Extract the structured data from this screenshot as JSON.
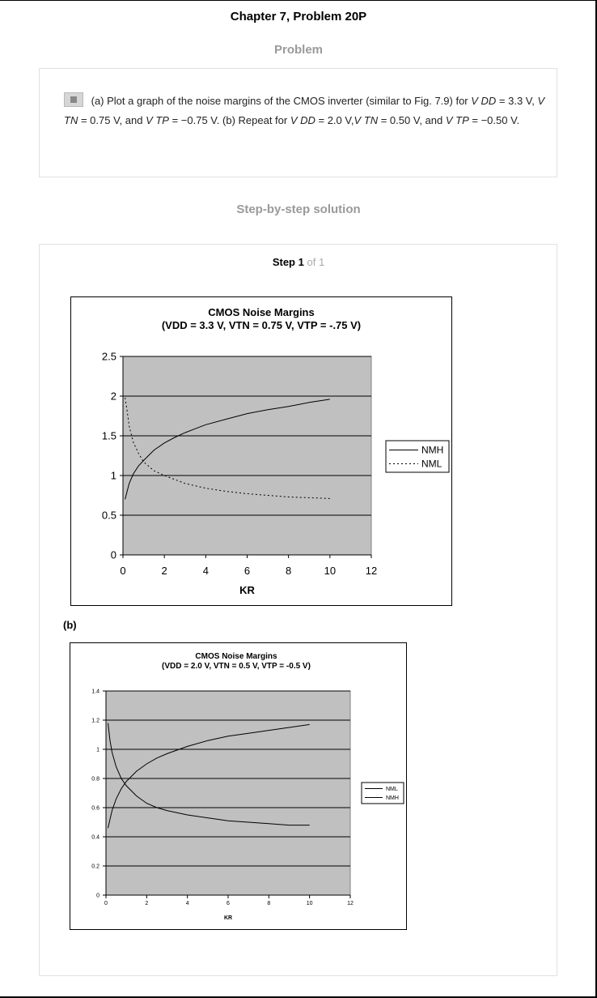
{
  "header": {
    "title": "Chapter 7, Problem 20P"
  },
  "problem": {
    "heading": "Problem",
    "segments": [
      {
        "t": "(a) Plot a graph of the noise margins of the CMOS  inverter (similar to Fig. 7.9) for ",
        "i": false
      },
      {
        "t": "V DD",
        "i": true
      },
      {
        "t": " = 3.3 V, ",
        "i": false
      },
      {
        "t": "V TN",
        "i": true
      },
      {
        "t": " = 0.75 V, and ",
        "i": false
      },
      {
        "t": "V TP",
        "i": true
      },
      {
        "t": " = −0.75 V. (b) Repeat for ",
        "i": false
      },
      {
        "t": "V DD",
        "i": true
      },
      {
        "t": " = 2.0 V,",
        "i": false
      },
      {
        "t": "V TN",
        "i": true
      },
      {
        "t": " = 0.50 V, and ",
        "i": false
      },
      {
        "t": "V TP",
        "i": true
      },
      {
        "t": " = −0.50 V.",
        "i": false
      }
    ]
  },
  "solution": {
    "heading": "Step-by-step solution",
    "step_word": "Step",
    "step_num": "1",
    "step_of": "of 1",
    "part_b_label": "(b)"
  },
  "chart_data": [
    {
      "type": "line",
      "title": "CMOS Noise Margins",
      "subtitle": "(VDD = 3.3 V, VTN = 0.75 V, VTP = -.75 V)",
      "xlabel": "KR",
      "ylabel": "",
      "xlim": [
        0,
        12
      ],
      "ylim": [
        0,
        2.5
      ],
      "xticks": [
        "0",
        "2",
        "4",
        "6",
        "8",
        "10",
        "12"
      ],
      "yticks": [
        "0",
        "0.5",
        "1",
        "1.5",
        "2",
        "2.5"
      ],
      "grid": "horizontal",
      "plot_bg": "#c0c0c0",
      "legend_position": "right",
      "legend": [
        "NMH",
        "NML"
      ],
      "series": [
        {
          "name": "NMH",
          "style": "solid",
          "x": [
            0.1,
            0.3,
            0.5,
            0.75,
            1,
            1.5,
            2,
            2.5,
            3,
            3.5,
            4,
            5,
            6,
            7,
            8,
            9,
            10
          ],
          "y": [
            0.7,
            0.9,
            1.02,
            1.12,
            1.19,
            1.32,
            1.41,
            1.48,
            1.54,
            1.59,
            1.64,
            1.71,
            1.78,
            1.83,
            1.87,
            1.92,
            1.96
          ]
        },
        {
          "name": "NML",
          "style": "dotted",
          "x": [
            0.1,
            0.2,
            0.3,
            0.5,
            0.75,
            1,
            1.5,
            2,
            2.5,
            3,
            3.5,
            4,
            5,
            6,
            7,
            8,
            9,
            10
          ],
          "y": [
            1.98,
            1.82,
            1.62,
            1.42,
            1.28,
            1.17,
            1.06,
            1.0,
            0.95,
            0.9,
            0.87,
            0.84,
            0.8,
            0.77,
            0.75,
            0.73,
            0.72,
            0.71
          ]
        }
      ]
    },
    {
      "type": "line",
      "title": "CMOS Noise Margins",
      "subtitle": "(VDD = 2.0 V, VTN = 0.5 V, VTP = -0.5 V)",
      "xlabel": "KR",
      "ylabel": "",
      "xlim": [
        0,
        12
      ],
      "ylim": [
        0,
        1.4
      ],
      "xticks": [
        "0",
        "2",
        "4",
        "6",
        "8",
        "10",
        "12"
      ],
      "yticks": [
        "0",
        "0.2",
        "0.4",
        "0.6",
        "0.8",
        "1",
        "1.2",
        "1.4"
      ],
      "grid": "horizontal",
      "plot_bg": "#c0c0c0",
      "legend_position": "right",
      "legend": [
        "NML",
        "NMH"
      ],
      "series": [
        {
          "name": "NML",
          "style": "solid",
          "x": [
            0.1,
            0.2,
            0.3,
            0.5,
            0.75,
            1,
            1.5,
            2,
            2.5,
            3,
            4,
            5,
            6,
            7,
            8,
            9,
            10
          ],
          "y": [
            1.18,
            1.06,
            0.98,
            0.88,
            0.8,
            0.75,
            0.68,
            0.63,
            0.6,
            0.58,
            0.55,
            0.53,
            0.51,
            0.5,
            0.49,
            0.48,
            0.48
          ]
        },
        {
          "name": "NMH",
          "style": "solid",
          "x": [
            0.1,
            0.3,
            0.5,
            0.75,
            1,
            1.5,
            2,
            2.5,
            3,
            4,
            5,
            6,
            7,
            8,
            9,
            10
          ],
          "y": [
            0.46,
            0.58,
            0.66,
            0.73,
            0.78,
            0.85,
            0.9,
            0.94,
            0.97,
            1.02,
            1.06,
            1.09,
            1.11,
            1.13,
            1.15,
            1.17
          ]
        }
      ]
    }
  ]
}
